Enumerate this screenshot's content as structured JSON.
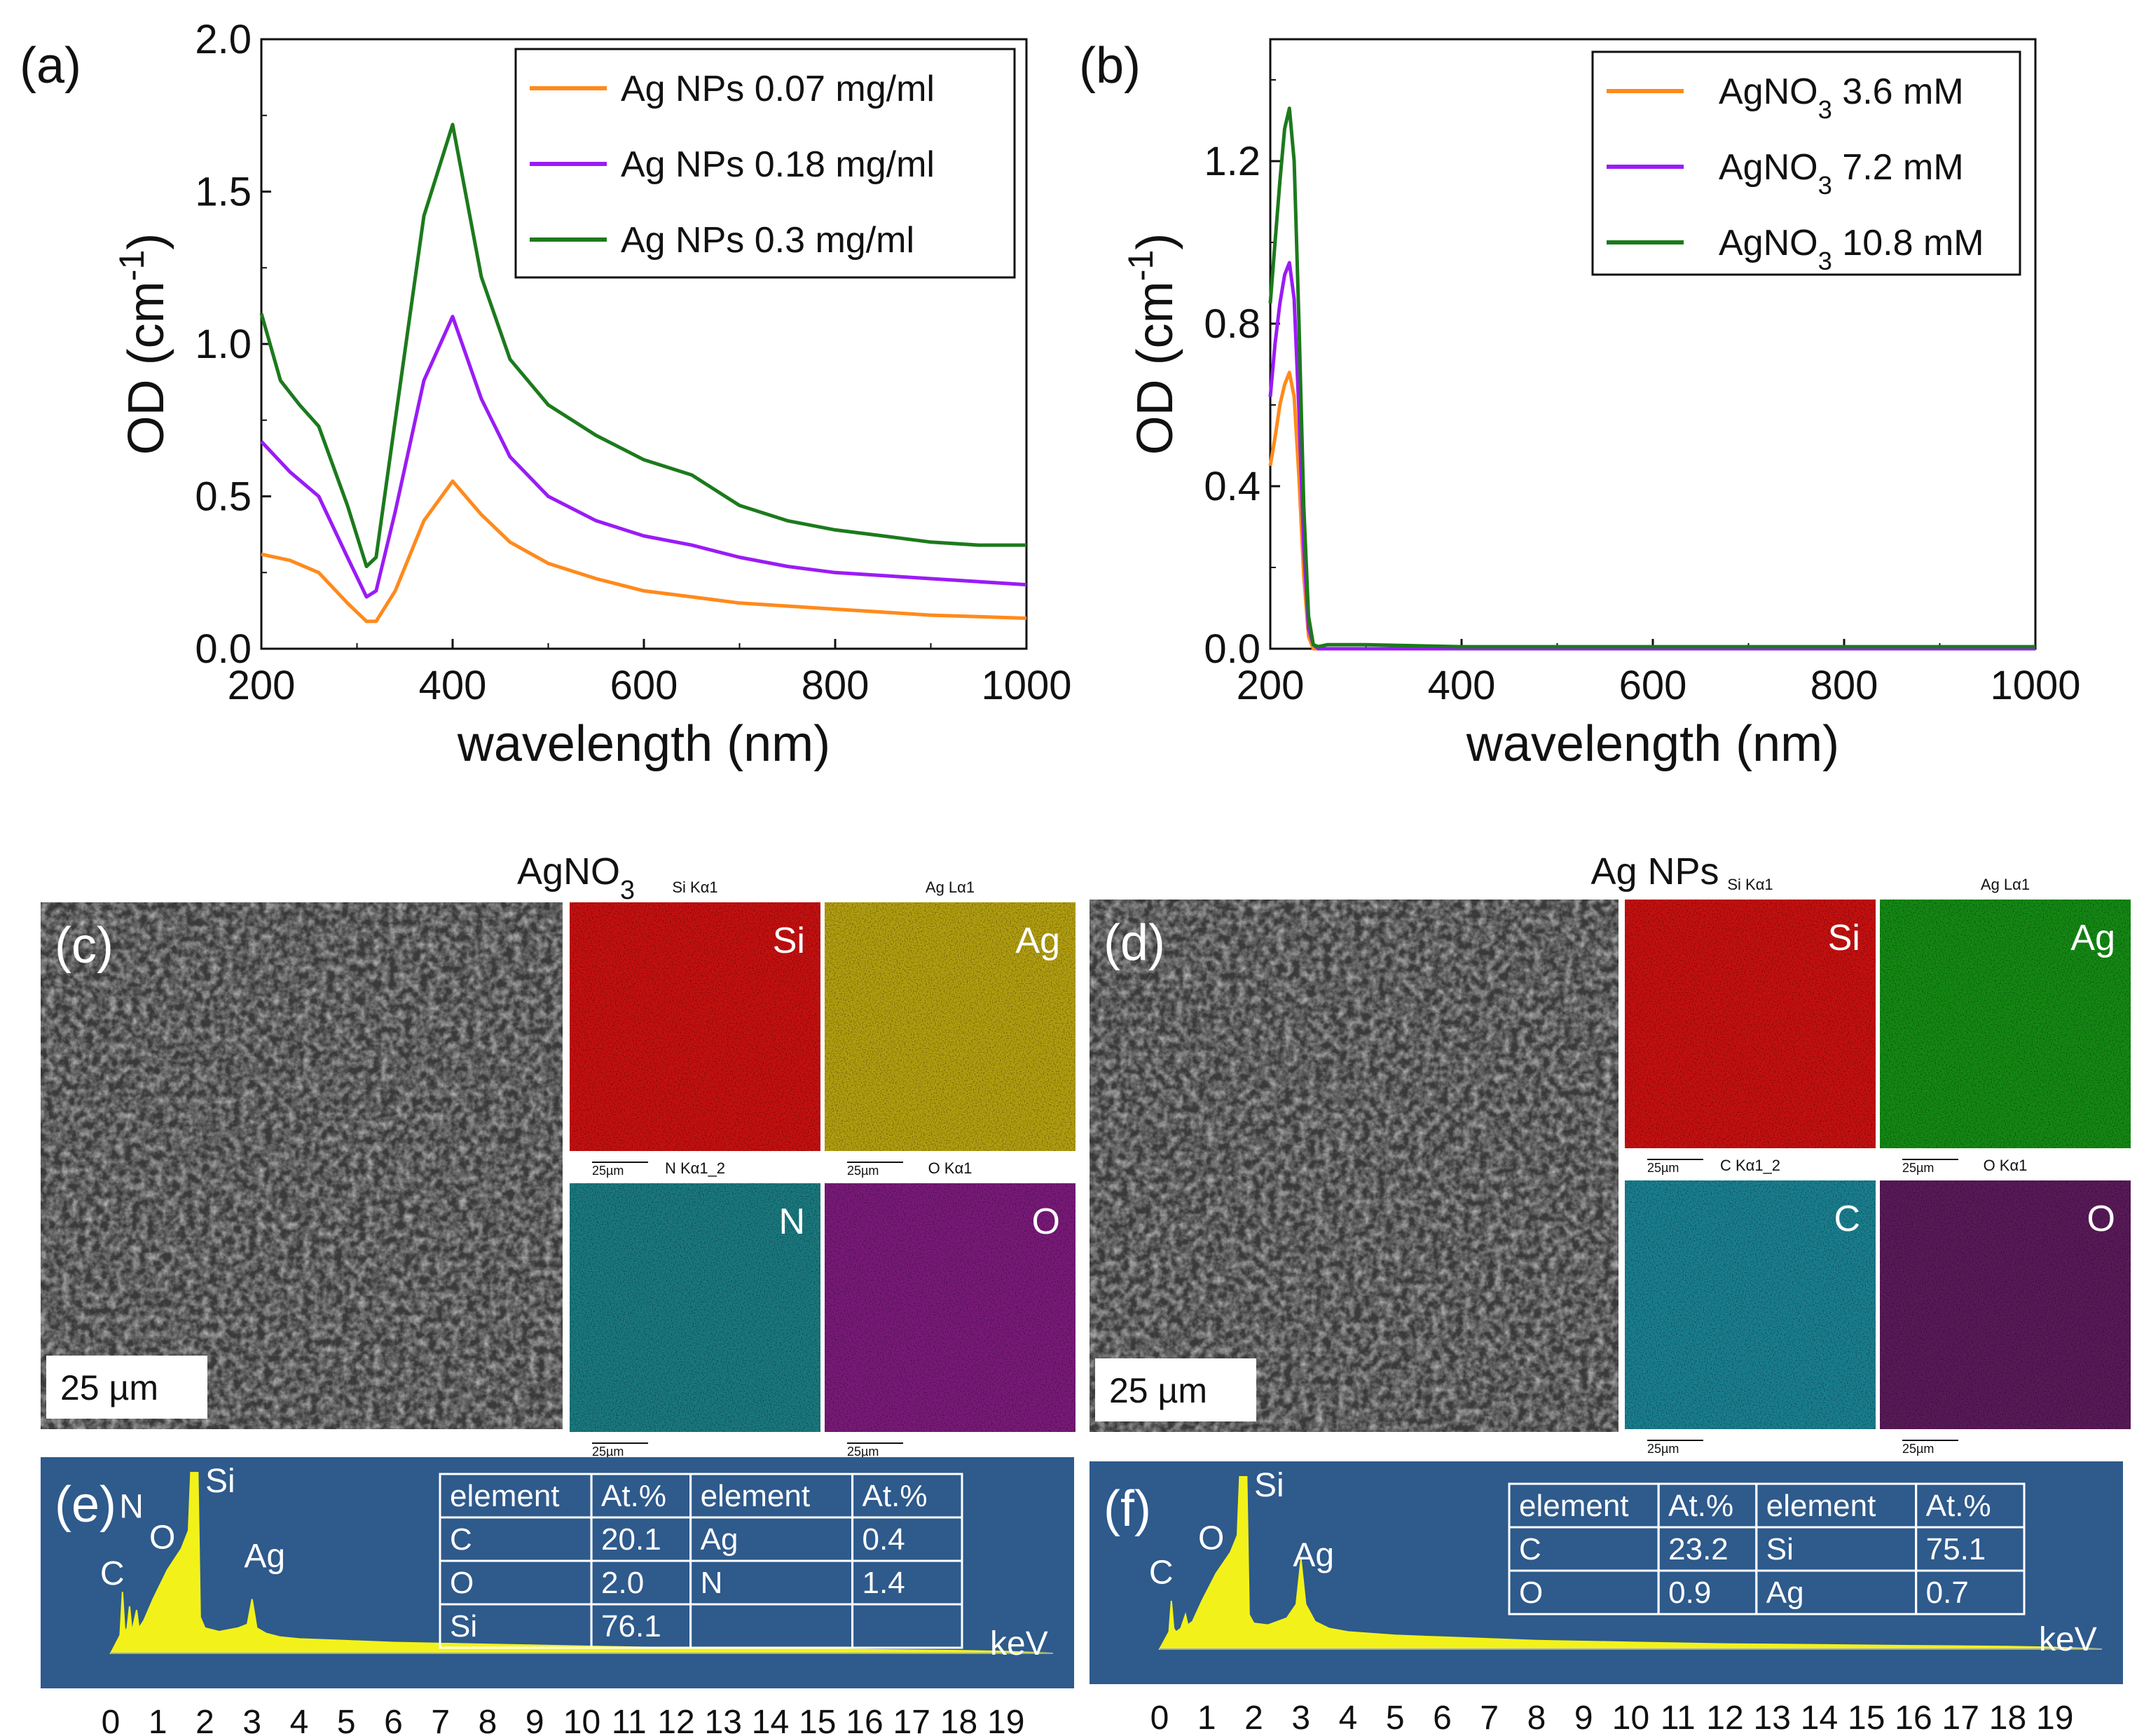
{
  "colors": {
    "orange": "#ff8a1c",
    "purple": "#9a1cf5",
    "green": "#1c7a1c",
    "spectrum_bg": "#2e5a8c",
    "spectrum_fill": "#f2f21a",
    "map_si": "#c81010",
    "map_ag_yellow": "#b4a010",
    "map_ag_green": "#148a14",
    "map_n": "#1a7a80",
    "map_o": "#7a1a7a",
    "map_c": "#1a8090",
    "map_o2": "#5a1a5a"
  },
  "chart_data": [
    {
      "panel": "(a)",
      "type": "line",
      "xlabel": "wavelength (nm)",
      "ylabel_main": "OD (cm",
      "ylabel_sup": "-1",
      "ylabel_close": ")",
      "xlim": [
        200,
        1000
      ],
      "ylim": [
        0,
        2.0
      ],
      "xticks": [
        200,
        400,
        600,
        800,
        1000
      ],
      "yticks": [
        "0.0",
        "0.5",
        "1.0",
        "1.5",
        "2.0"
      ],
      "yticks_values": [
        0,
        0.5,
        1.0,
        1.5,
        2.0
      ],
      "series": [
        {
          "name": "Ag NPs 0.07 mg/ml",
          "color": "orange",
          "x": [
            200,
            230,
            260,
            290,
            310,
            320,
            340,
            370,
            400,
            430,
            460,
            500,
            550,
            600,
            650,
            700,
            750,
            800,
            850,
            900,
            950,
            1000
          ],
          "y": [
            0.31,
            0.29,
            0.25,
            0.15,
            0.09,
            0.09,
            0.19,
            0.42,
            0.55,
            0.44,
            0.35,
            0.28,
            0.23,
            0.19,
            0.17,
            0.15,
            0.14,
            0.13,
            0.12,
            0.11,
            0.105,
            0.1
          ]
        },
        {
          "name": "Ag NPs 0.18 mg/ml",
          "color": "purple",
          "x": [
            200,
            230,
            260,
            290,
            310,
            320,
            340,
            370,
            400,
            430,
            460,
            500,
            550,
            600,
            650,
            700,
            750,
            800,
            850,
            900,
            950,
            1000
          ],
          "y": [
            0.68,
            0.58,
            0.5,
            0.3,
            0.17,
            0.19,
            0.45,
            0.88,
            1.09,
            0.82,
            0.63,
            0.5,
            0.42,
            0.37,
            0.34,
            0.3,
            0.27,
            0.25,
            0.24,
            0.23,
            0.22,
            0.21
          ]
        },
        {
          "name": "Ag NPs 0.3 mg/ml",
          "color": "green",
          "x": [
            200,
            220,
            240,
            260,
            290,
            310,
            320,
            340,
            370,
            400,
            430,
            460,
            500,
            550,
            600,
            650,
            680,
            700,
            750,
            800,
            850,
            900,
            950,
            1000
          ],
          "y": [
            1.1,
            0.88,
            0.8,
            0.73,
            0.47,
            0.27,
            0.3,
            0.75,
            1.42,
            1.72,
            1.22,
            0.95,
            0.8,
            0.7,
            0.62,
            0.57,
            0.51,
            0.47,
            0.42,
            0.39,
            0.37,
            0.35,
            0.34,
            0.34
          ]
        }
      ]
    },
    {
      "panel": "(b)",
      "type": "line",
      "xlabel": "wavelength (nm)",
      "ylabel_main": "OD (cm",
      "ylabel_sup": "-1",
      "ylabel_close": ")",
      "xlim": [
        200,
        1000
      ],
      "ylim": [
        0,
        1.5
      ],
      "xticks": [
        200,
        400,
        600,
        800,
        1000
      ],
      "yticks": [
        "0.0",
        "0.4",
        "0.8",
        "1.2"
      ],
      "yticks_values": [
        0,
        0.4,
        0.8,
        1.2
      ],
      "series": [
        {
          "name_main": "AgNO",
          "name_sub": "3",
          "name_rest": " 3.6 mM",
          "color": "orange",
          "x": [
            200,
            205,
            210,
            215,
            220,
            225,
            230,
            235,
            240,
            245,
            250,
            300,
            400,
            600,
            800,
            1000
          ],
          "y": [
            0.45,
            0.52,
            0.6,
            0.65,
            0.68,
            0.62,
            0.42,
            0.18,
            0.03,
            0.0,
            0.0,
            0.0,
            0.0,
            0.0,
            0.0,
            0.0
          ]
        },
        {
          "name_main": "AgNO",
          "name_sub": "3",
          "name_rest": " 7.2 mM",
          "color": "purple",
          "x": [
            200,
            205,
            210,
            215,
            220,
            225,
            230,
            235,
            240,
            245,
            250,
            300,
            400,
            600,
            800,
            1000
          ],
          "y": [
            0.62,
            0.75,
            0.85,
            0.92,
            0.95,
            0.86,
            0.58,
            0.25,
            0.05,
            0.01,
            0.0,
            0.0,
            0.0,
            0.0,
            0.0,
            0.0
          ]
        },
        {
          "name_main": "AgNO",
          "name_sub": "3",
          "name_rest": " 10.8 mM",
          "color": "green",
          "x": [
            200,
            205,
            210,
            215,
            220,
            225,
            230,
            235,
            240,
            245,
            250,
            260,
            300,
            400,
            600,
            800,
            1000
          ],
          "y": [
            0.85,
            1.0,
            1.15,
            1.28,
            1.33,
            1.2,
            0.8,
            0.35,
            0.08,
            0.01,
            0.005,
            0.01,
            0.01,
            0.005,
            0.005,
            0.005,
            0.005
          ]
        }
      ]
    },
    {
      "panel": "(e)",
      "type": "area",
      "xlabel": "keV",
      "xticks": [
        "0",
        "1",
        "2",
        "3",
        "4",
        "5",
        "6",
        "7",
        "8",
        "9",
        "10",
        "11",
        "12",
        "13",
        "14",
        "15",
        "16",
        "17",
        "18",
        "19"
      ],
      "peaks": [
        {
          "label": "C",
          "kev": 0.28
        },
        {
          "label": "N",
          "kev": 0.39
        },
        {
          "label": "O",
          "kev": 0.52
        },
        {
          "label": "Si",
          "kev": 1.74
        },
        {
          "label": "Ag",
          "kev": 2.98
        }
      ],
      "x": [
        0.0,
        0.1,
        0.2,
        0.25,
        0.3,
        0.35,
        0.4,
        0.45,
        0.55,
        0.6,
        0.7,
        0.9,
        1.2,
        1.5,
        1.65,
        1.7,
        1.75,
        1.8,
        1.85,
        1.9,
        2.0,
        2.3,
        2.7,
        2.9,
        3.0,
        3.1,
        3.3,
        3.6,
        4.0,
        5.0,
        6.0,
        8.0,
        10.0,
        12.0,
        14.0,
        16.0,
        18.0,
        19.0,
        20.0
      ],
      "counts": [
        0,
        5,
        10,
        34,
        12,
        14,
        26,
        12,
        24,
        14,
        18,
        30,
        46,
        58,
        68,
        100,
        100,
        100,
        100,
        20,
        14,
        12,
        14,
        16,
        30,
        14,
        11,
        9,
        8,
        7,
        6,
        5,
        4,
        3,
        2.5,
        2,
        1.5,
        1,
        0
      ]
    },
    {
      "panel": "(f)",
      "type": "area",
      "xlabel": "keV",
      "xticks": [
        "0",
        "1",
        "2",
        "3",
        "4",
        "5",
        "6",
        "7",
        "8",
        "9",
        "10",
        "11",
        "12",
        "13",
        "14",
        "15",
        "16",
        "17",
        "18",
        "19"
      ],
      "peaks": [
        {
          "label": "C",
          "kev": 0.28
        },
        {
          "label": "O",
          "kev": 0.52
        },
        {
          "label": "Si",
          "kev": 1.74
        },
        {
          "label": "Ag",
          "kev": 2.98
        }
      ],
      "x": [
        0.0,
        0.1,
        0.2,
        0.25,
        0.3,
        0.35,
        0.45,
        0.55,
        0.6,
        0.7,
        0.9,
        1.2,
        1.5,
        1.65,
        1.7,
        1.75,
        1.8,
        1.85,
        1.9,
        2.0,
        2.3,
        2.7,
        2.9,
        3.0,
        3.1,
        3.3,
        3.6,
        4.0,
        5.0,
        6.0,
        8.0,
        10.0,
        12.0,
        14.0,
        16.0,
        18.0,
        19.0,
        20.0
      ],
      "counts": [
        0,
        5,
        10,
        28,
        12,
        10,
        12,
        20,
        14,
        16,
        28,
        44,
        56,
        66,
        100,
        100,
        100,
        100,
        20,
        15,
        14,
        18,
        26,
        52,
        26,
        16,
        12,
        10,
        8,
        7,
        5,
        4,
        3,
        2.5,
        2,
        1.5,
        1,
        0
      ]
    }
  ],
  "sem": {
    "c": {
      "title": "AgNO",
      "title_sub": "3",
      "label": "(c)",
      "scalebar": "25 µm",
      "maps": [
        {
          "header": "Si Kα1",
          "element": "Si",
          "color": "map_si"
        },
        {
          "header": "Ag Lα1",
          "element": "Ag",
          "color": "map_ag_yellow"
        },
        {
          "header": "N Kα1_2",
          "element": "N",
          "color": "map_n"
        },
        {
          "header": "O Kα1",
          "element": "O",
          "color": "map_o"
        }
      ],
      "map_scalebar": "25µm"
    },
    "d": {
      "title": "Ag NPs",
      "label": "(d)",
      "scalebar": "25 µm",
      "maps": [
        {
          "header": "Si Kα1",
          "element": "Si",
          "color": "map_si"
        },
        {
          "header": "Ag Lα1",
          "element": "Ag",
          "color": "map_ag_green"
        },
        {
          "header": "C Kα1_2",
          "element": "C",
          "color": "map_c"
        },
        {
          "header": "O Kα1",
          "element": "O",
          "color": "map_o2"
        }
      ],
      "map_scalebar": "25µm"
    }
  },
  "tables": {
    "e": {
      "label": "(e)",
      "headers": [
        "element",
        "At.%",
        "element",
        "At.%"
      ],
      "rows": [
        [
          "C",
          "20.1",
          "Ag",
          "0.4"
        ],
        [
          "O",
          "2.0",
          "N",
          "1.4"
        ],
        [
          "Si",
          "76.1",
          "",
          ""
        ]
      ]
    },
    "f": {
      "label": "(f)",
      "headers": [
        "element",
        "At.%",
        "element",
        "At.%"
      ],
      "rows": [
        [
          "C",
          "23.2",
          "Si",
          "75.1"
        ],
        [
          "O",
          "0.9",
          "Ag",
          "0.7"
        ]
      ]
    }
  }
}
